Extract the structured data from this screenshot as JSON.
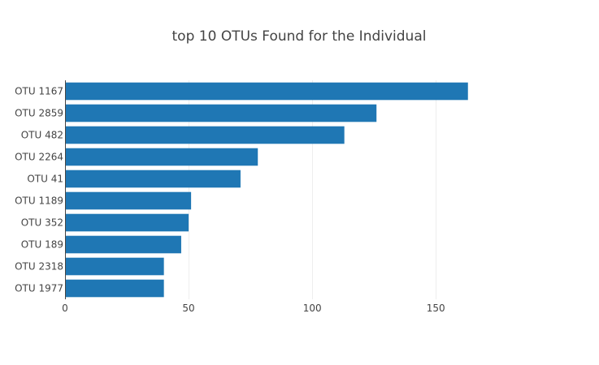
{
  "chart_data": {
    "type": "bar",
    "orientation": "horizontal",
    "title": "top 10 OTUs Found for the Individual",
    "xlabel": "",
    "ylabel": "",
    "categories": [
      "OTU 1167",
      "OTU 2859",
      "OTU 482",
      "OTU 2264",
      "OTU 41",
      "OTU 1189",
      "OTU 352",
      "OTU 189",
      "OTU 2318",
      "OTU 1977"
    ],
    "values": [
      163,
      126,
      113,
      78,
      71,
      51,
      50,
      47,
      40,
      40
    ],
    "xlim": [
      0,
      193
    ],
    "xticks": [
      0,
      50,
      100,
      150
    ],
    "xtick_labels": [
      "0",
      "50",
      "100",
      "150"
    ],
    "grid": true,
    "bar_color": "#1f77b4"
  }
}
